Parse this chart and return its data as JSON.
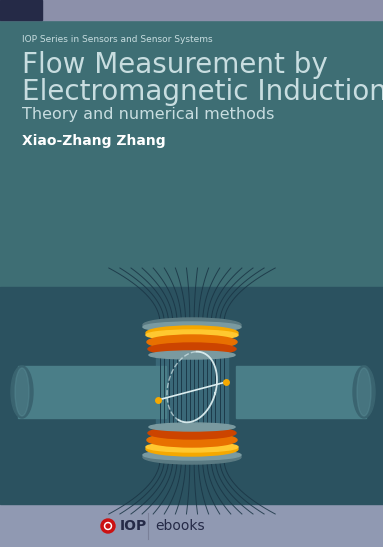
{
  "top_band_color": "#8c90aa",
  "top_band_dark_color": "#252a47",
  "main_bg_color": "#3e6e74",
  "illus_bg_color": "#2b5260",
  "pipe_bg_stripe": "#355f6a",
  "footer_color": "#9099b2",
  "series_text": "IOP Series in Sensors and Sensor Systems",
  "series_fontsize": 6.5,
  "title_line1": "Flow Measurement by",
  "title_line2": "Electromagnetic Induction",
  "title_fontsize": 20,
  "subtitle": "Theory and numerical methods",
  "subtitle_fontsize": 11.5,
  "author": "Xiao-Zhang Zhang",
  "author_fontsize": 10,
  "text_color": "#c8dde0",
  "author_color": "#ffffff",
  "footer_text_color": "#252a47",
  "pipe_color": "#4a7e88",
  "pipe_end_color": "#3a6470",
  "pipe_highlight": "#5a8e98",
  "center_section_color": "#3a6878",
  "coil_gray_top": "#7a9aa0",
  "coil_gray_shadow": "#5a7a82",
  "coil_orange_dark": "#cc4400",
  "coil_orange_mid": "#e87000",
  "coil_yellow": "#f5a800",
  "coil_yellow_light": "#ffc830",
  "field_line_color": "#1a3545",
  "electrode_color": "#f5a800",
  "signal_color": "#ddeef0",
  "iop_red": "#cc1111"
}
